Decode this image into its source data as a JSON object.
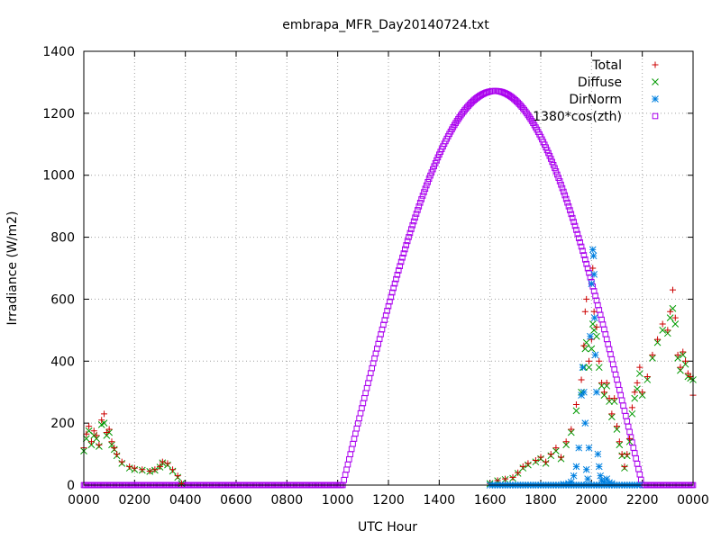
{
  "chart_data": {
    "type": "scatter",
    "title": "embrapa_MFR_Day20140724.txt",
    "xlabel": "UTC Hour",
    "ylabel": "Irradiance (W/m2)",
    "xlim": [
      0,
      24
    ],
    "ylim": [
      0,
      1400
    ],
    "grid": true,
    "legend_position": "top-right",
    "x_tick_labels": [
      "0000",
      "0200",
      "0400",
      "0600",
      "0800",
      "1000",
      "1200",
      "1400",
      "1600",
      "1800",
      "2000",
      "2200",
      "0000"
    ],
    "y_ticks": [
      0,
      200,
      400,
      600,
      800,
      1000,
      1200,
      1400
    ],
    "series": [
      {
        "name": "Total",
        "marker": "plus",
        "color": "#cc0000",
        "points": [
          [
            0.0,
            120
          ],
          [
            0.1,
            165
          ],
          [
            0.2,
            190
          ],
          [
            0.3,
            140
          ],
          [
            0.4,
            175
          ],
          [
            0.5,
            160
          ],
          [
            0.6,
            130
          ],
          [
            0.7,
            210
          ],
          [
            0.8,
            230
          ],
          [
            0.9,
            170
          ],
          [
            1.0,
            180
          ],
          [
            1.1,
            140
          ],
          [
            1.2,
            120
          ],
          [
            1.3,
            100
          ],
          [
            1.5,
            75
          ],
          [
            1.8,
            60
          ],
          [
            2.0,
            55
          ],
          [
            2.3,
            50
          ],
          [
            2.6,
            45
          ],
          [
            2.8,
            50
          ],
          [
            3.0,
            60
          ],
          [
            3.1,
            75
          ],
          [
            3.3,
            70
          ],
          [
            3.5,
            50
          ],
          [
            3.7,
            30
          ],
          [
            3.85,
            5
          ],
          [
            16.0,
            5
          ],
          [
            16.3,
            15
          ],
          [
            16.6,
            20
          ],
          [
            16.9,
            25
          ],
          [
            17.1,
            40
          ],
          [
            17.3,
            60
          ],
          [
            17.5,
            70
          ],
          [
            17.8,
            80
          ],
          [
            18.0,
            90
          ],
          [
            18.2,
            75
          ],
          [
            18.4,
            100
          ],
          [
            18.6,
            120
          ],
          [
            18.8,
            90
          ],
          [
            19.0,
            140
          ],
          [
            19.2,
            180
          ],
          [
            19.4,
            260
          ],
          [
            19.6,
            340
          ],
          [
            19.7,
            450
          ],
          [
            19.75,
            560
          ],
          [
            19.8,
            600
          ],
          [
            19.9,
            400
          ],
          [
            20.0,
            470
          ],
          [
            20.05,
            700
          ],
          [
            20.1,
            560
          ],
          [
            20.2,
            510
          ],
          [
            20.3,
            400
          ],
          [
            20.4,
            330
          ],
          [
            20.5,
            300
          ],
          [
            20.6,
            330
          ],
          [
            20.7,
            280
          ],
          [
            20.8,
            230
          ],
          [
            20.9,
            280
          ],
          [
            21.0,
            190
          ],
          [
            21.1,
            140
          ],
          [
            21.2,
            100
          ],
          [
            21.3,
            60
          ],
          [
            21.4,
            100
          ],
          [
            21.5,
            150
          ],
          [
            21.6,
            250
          ],
          [
            21.7,
            300
          ],
          [
            21.8,
            330
          ],
          [
            21.9,
            380
          ],
          [
            22.0,
            300
          ],
          [
            22.2,
            350
          ],
          [
            22.4,
            420
          ],
          [
            22.6,
            470
          ],
          [
            22.8,
            520
          ],
          [
            23.0,
            500
          ],
          [
            23.1,
            560
          ],
          [
            23.2,
            630
          ],
          [
            23.3,
            540
          ],
          [
            23.4,
            420
          ],
          [
            23.5,
            380
          ],
          [
            23.6,
            430
          ],
          [
            23.7,
            400
          ],
          [
            23.8,
            360
          ],
          [
            23.9,
            350
          ],
          [
            24.0,
            290
          ]
        ]
      },
      {
        "name": "Diffuse",
        "marker": "cross",
        "color": "#009900",
        "points": [
          [
            0.0,
            110
          ],
          [
            0.1,
            150
          ],
          [
            0.2,
            175
          ],
          [
            0.3,
            130
          ],
          [
            0.4,
            160
          ],
          [
            0.5,
            150
          ],
          [
            0.6,
            125
          ],
          [
            0.7,
            195
          ],
          [
            0.8,
            200
          ],
          [
            0.9,
            160
          ],
          [
            1.0,
            170
          ],
          [
            1.1,
            130
          ],
          [
            1.2,
            115
          ],
          [
            1.3,
            95
          ],
          [
            1.5,
            70
          ],
          [
            1.8,
            55
          ],
          [
            2.0,
            50
          ],
          [
            2.3,
            48
          ],
          [
            2.6,
            44
          ],
          [
            2.8,
            48
          ],
          [
            3.0,
            58
          ],
          [
            3.1,
            72
          ],
          [
            3.3,
            65
          ],
          [
            3.5,
            45
          ],
          [
            3.7,
            25
          ],
          [
            3.85,
            5
          ],
          [
            16.0,
            5
          ],
          [
            16.3,
            14
          ],
          [
            16.6,
            18
          ],
          [
            16.9,
            22
          ],
          [
            17.1,
            38
          ],
          [
            17.3,
            55
          ],
          [
            17.5,
            65
          ],
          [
            17.8,
            75
          ],
          [
            18.0,
            85
          ],
          [
            18.2,
            70
          ],
          [
            18.4,
            95
          ],
          [
            18.6,
            110
          ],
          [
            18.8,
            85
          ],
          [
            19.0,
            130
          ],
          [
            19.2,
            170
          ],
          [
            19.4,
            240
          ],
          [
            19.6,
            300
          ],
          [
            19.7,
            380
          ],
          [
            19.75,
            440
          ],
          [
            19.8,
            460
          ],
          [
            19.9,
            380
          ],
          [
            20.0,
            440
          ],
          [
            20.05,
            520
          ],
          [
            20.1,
            500
          ],
          [
            20.2,
            480
          ],
          [
            20.3,
            380
          ],
          [
            20.4,
            320
          ],
          [
            20.5,
            290
          ],
          [
            20.6,
            320
          ],
          [
            20.7,
            270
          ],
          [
            20.8,
            220
          ],
          [
            20.9,
            270
          ],
          [
            21.0,
            180
          ],
          [
            21.1,
            130
          ],
          [
            21.2,
            95
          ],
          [
            21.3,
            55
          ],
          [
            21.4,
            95
          ],
          [
            21.5,
            140
          ],
          [
            21.6,
            230
          ],
          [
            21.7,
            280
          ],
          [
            21.8,
            310
          ],
          [
            21.9,
            360
          ],
          [
            22.0,
            290
          ],
          [
            22.2,
            340
          ],
          [
            22.4,
            410
          ],
          [
            22.6,
            460
          ],
          [
            22.8,
            500
          ],
          [
            23.0,
            490
          ],
          [
            23.1,
            540
          ],
          [
            23.2,
            570
          ],
          [
            23.3,
            520
          ],
          [
            23.4,
            410
          ],
          [
            23.5,
            370
          ],
          [
            23.6,
            420
          ],
          [
            23.7,
            390
          ],
          [
            23.8,
            350
          ],
          [
            23.9,
            345
          ],
          [
            24.0,
            340
          ]
        ]
      },
      {
        "name": "DirNorm",
        "marker": "star",
        "color": "#0080e0",
        "points": [
          [
            19.4,
            60
          ],
          [
            19.5,
            120
          ],
          [
            19.6,
            290
          ],
          [
            19.65,
            380
          ],
          [
            19.7,
            300
          ],
          [
            19.75,
            200
          ],
          [
            19.8,
            50
          ],
          [
            19.85,
            20
          ],
          [
            19.9,
            120
          ],
          [
            19.95,
            480
          ],
          [
            20.0,
            650
          ],
          [
            20.05,
            760
          ],
          [
            20.08,
            740
          ],
          [
            20.1,
            680
          ],
          [
            20.12,
            540
          ],
          [
            20.15,
            420
          ],
          [
            20.2,
            300
          ],
          [
            20.25,
            100
          ],
          [
            20.3,
            60
          ],
          [
            20.35,
            30
          ],
          [
            20.4,
            15
          ],
          [
            20.5,
            10
          ],
          [
            20.6,
            20
          ],
          [
            20.7,
            8
          ],
          [
            20.8,
            5
          ],
          [
            19.3,
            30
          ],
          [
            19.2,
            10
          ],
          [
            19.1,
            5
          ],
          [
            18.9,
            3
          ]
        ]
      },
      {
        "name": "1380*cos(zth)",
        "marker": "square",
        "color": "#aa00ee",
        "curve": {
          "sunrise_hour": 10.2,
          "sunset_hour": 22.0,
          "peak_hour": 16.2,
          "peak_value": 1272
        }
      }
    ]
  }
}
